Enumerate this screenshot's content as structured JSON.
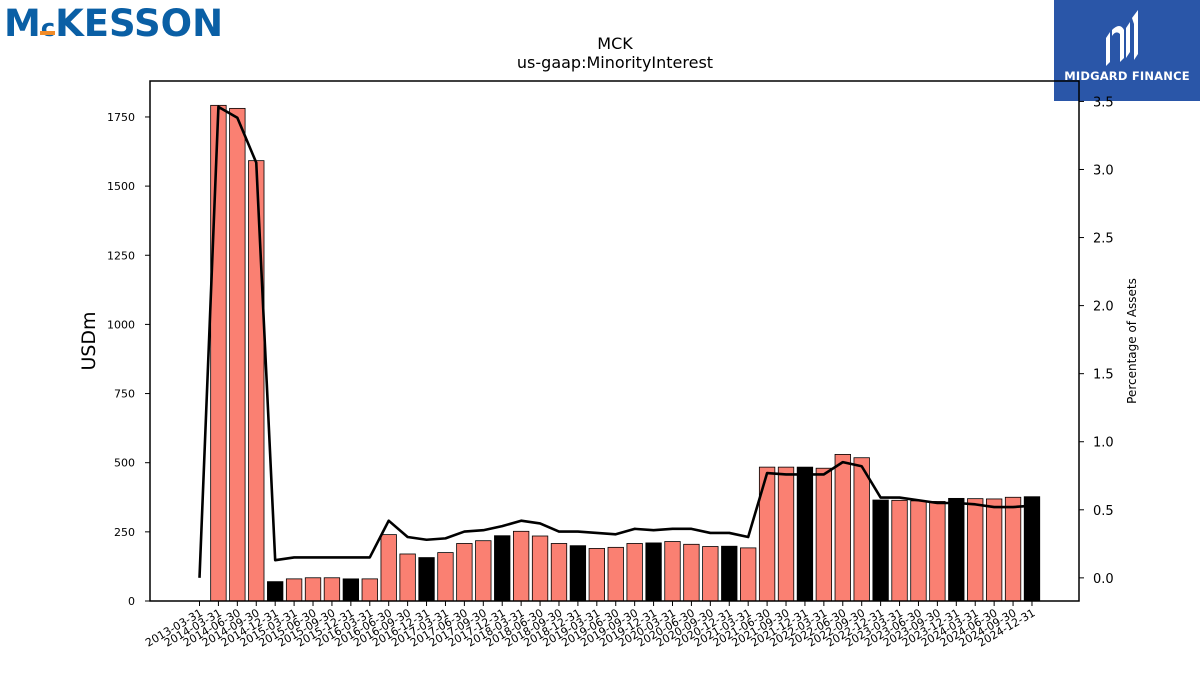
{
  "branding": {
    "left_logo_text_a": "M",
    "left_logo_text_c": "c",
    "left_logo_text_b": "KESSON",
    "right_logo_text": "MIDGARD FINANCE",
    "colors": {
      "mckesson_blue": "#0a5fa5",
      "mckesson_orange": "#f28c28",
      "midgard_blue": "#2a56a8"
    }
  },
  "chart_data": {
    "type": "bar",
    "title": "MCK",
    "subtitle": "us-gaap:MinorityInterest",
    "ylabel": "USDm",
    "y2label": "Percentage of Assets",
    "ylim": [
      0,
      1880
    ],
    "y2lim": [
      -0.17,
      3.65
    ],
    "yticks": [
      0,
      250,
      500,
      750,
      1000,
      1250,
      1500,
      1750
    ],
    "y2ticks": [
      0.0,
      0.5,
      1.0,
      1.5,
      2.0,
      2.5,
      3.0,
      3.5
    ],
    "y2tick_labels": [
      "0.0",
      "0.5",
      "1.0",
      "1.5",
      "2.0",
      "2.5",
      "3.0",
      "3.5"
    ],
    "grid": false,
    "bar_colors": {
      "salmon": "#fa8072",
      "black": "#000000"
    },
    "line_color": "#000000",
    "categories": [
      "2013-03-31",
      "2014-03-31",
      "2014-06-30",
      "2014-09-30",
      "2014-12-31",
      "2015-03-31",
      "2015-06-30",
      "2015-09-30",
      "2015-12-31",
      "2016-03-31",
      "2016-06-30",
      "2016-09-30",
      "2016-12-31",
      "2017-03-31",
      "2017-06-30",
      "2017-09-30",
      "2017-12-31",
      "2018-03-31",
      "2018-06-30",
      "2018-09-30",
      "2018-12-31",
      "2019-03-31",
      "2019-06-30",
      "2019-09-30",
      "2019-12-31",
      "2020-03-31",
      "2020-06-30",
      "2020-09-30",
      "2020-12-31",
      "2021-03-31",
      "2021-06-30",
      "2021-09-30",
      "2021-12-31",
      "2022-03-31",
      "2022-06-30",
      "2022-09-30",
      "2022-12-31",
      "2023-03-31",
      "2023-06-30",
      "2023-09-30",
      "2023-12-31",
      "2024-03-31",
      "2024-06-30",
      "2024-09-30",
      "2024-12-31"
    ],
    "values": [
      0,
      1792,
      1781,
      1592,
      70,
      80,
      84,
      84,
      80,
      80,
      240,
      170,
      157,
      175,
      208,
      218,
      236,
      252,
      235,
      208,
      200,
      190,
      194,
      208,
      210,
      215,
      205,
      197,
      198,
      192,
      484,
      484,
      484,
      480,
      530,
      518,
      365,
      364,
      362,
      360,
      371,
      370,
      369,
      375,
      377
    ],
    "bar_color_keys": [
      "salmon",
      "salmon",
      "salmon",
      "salmon",
      "black",
      "salmon",
      "salmon",
      "salmon",
      "black",
      "salmon",
      "salmon",
      "salmon",
      "black",
      "salmon",
      "salmon",
      "salmon",
      "black",
      "salmon",
      "salmon",
      "salmon",
      "black",
      "salmon",
      "salmon",
      "salmon",
      "black",
      "salmon",
      "salmon",
      "salmon",
      "black",
      "salmon",
      "salmon",
      "salmon",
      "black",
      "salmon",
      "salmon",
      "salmon",
      "black",
      "salmon",
      "salmon",
      "salmon",
      "black",
      "salmon",
      "salmon",
      "salmon",
      "black"
    ],
    "pct_of_assets": [
      0.0,
      3.46,
      3.38,
      3.05,
      0.13,
      0.15,
      0.15,
      0.15,
      0.15,
      0.15,
      0.42,
      0.3,
      0.28,
      0.29,
      0.34,
      0.35,
      0.38,
      0.42,
      0.4,
      0.34,
      0.34,
      0.33,
      0.32,
      0.36,
      0.35,
      0.36,
      0.36,
      0.33,
      0.33,
      0.3,
      0.77,
      0.76,
      0.76,
      0.76,
      0.85,
      0.82,
      0.59,
      0.59,
      0.57,
      0.55,
      0.55,
      0.54,
      0.52,
      0.52,
      0.53
    ]
  }
}
